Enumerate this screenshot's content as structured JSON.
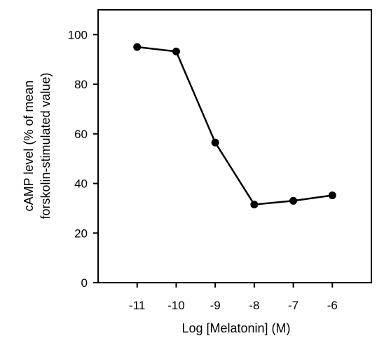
{
  "chart_data": {
    "type": "line",
    "title": "",
    "xlabel": "Log [Melatonin] (M)",
    "ylabel_lines": [
      "cAMP level (% of mean",
      "forskolin-stimulated value)"
    ],
    "x": [
      -11,
      -10,
      -9,
      -8,
      -7,
      -6
    ],
    "y": [
      95,
      93.2,
      56.5,
      31.5,
      33,
      35.2
    ],
    "xlim": [
      -12,
      -5
    ],
    "ylim": [
      0,
      110
    ],
    "xticks": [
      -11,
      -10,
      -9,
      -8,
      -7,
      -6
    ],
    "xtick_labels": [
      "-11",
      "-10",
      "-9",
      "-8",
      "-7",
      "-6"
    ],
    "yticks": [
      0,
      20,
      40,
      60,
      80,
      100
    ],
    "ytick_labels": [
      "0",
      "20",
      "40",
      "60",
      "80",
      "100"
    ],
    "grid": false,
    "legend": "none",
    "colors": {
      "line": "#000000",
      "marker": "#000000"
    }
  }
}
